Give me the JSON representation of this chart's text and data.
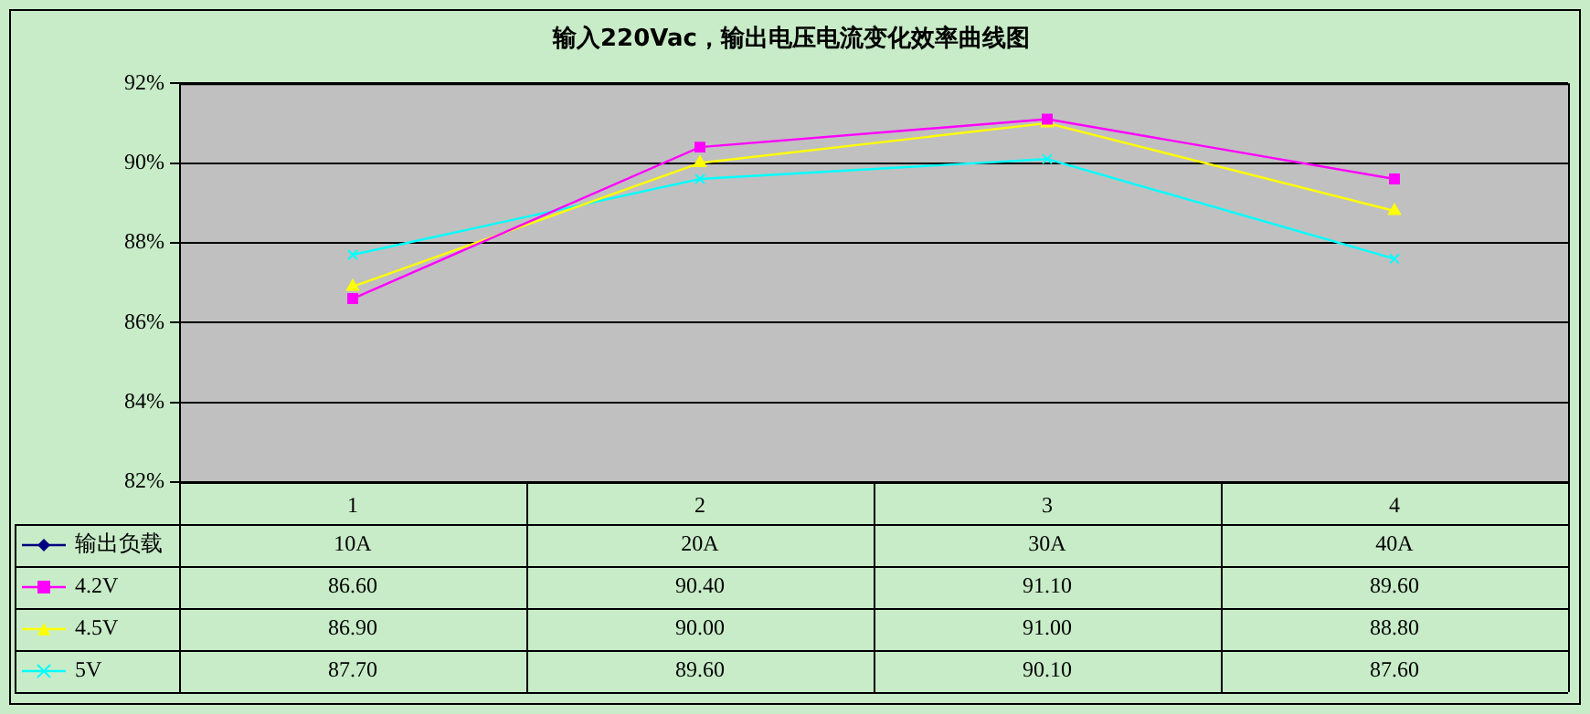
{
  "chart_data": {
    "type": "line",
    "title": "输入220Vac，输出电压电流变化效率曲线图",
    "categories": [
      "1",
      "2",
      "3",
      "4"
    ],
    "ylim": [
      82,
      92
    ],
    "yticks": [
      {
        "value": 82,
        "label": "82%"
      },
      {
        "value": 84,
        "label": "84%"
      },
      {
        "value": 86,
        "label": "86%"
      },
      {
        "value": 88,
        "label": "88%"
      },
      {
        "value": 90,
        "label": "90%"
      },
      {
        "value": 92,
        "label": "92%"
      }
    ],
    "grid": "y",
    "legend": "bottom",
    "series": [
      {
        "name": "输出负载",
        "color": "#000080",
        "marker": "diamond",
        "values": [
          null,
          null,
          null,
          null
        ],
        "value_labels": [
          "10A",
          "20A",
          "30A",
          "40A"
        ]
      },
      {
        "name": "4.2V",
        "color": "#ff00ff",
        "marker": "square",
        "values": [
          86.6,
          90.4,
          91.1,
          89.6
        ],
        "value_labels": [
          "86.60",
          "90.40",
          "91.10",
          "89.60"
        ]
      },
      {
        "name": "4.5V",
        "color": "#ffff00",
        "marker": "triangle",
        "values": [
          86.9,
          90.0,
          91.0,
          88.8
        ],
        "value_labels": [
          "86.90",
          "90.00",
          "91.00",
          "88.80"
        ]
      },
      {
        "name": "5V",
        "color": "#00ffff",
        "marker": "cross",
        "values": [
          87.7,
          89.6,
          90.1,
          87.6
        ],
        "value_labels": [
          "87.70",
          "89.60",
          "90.10",
          "87.60"
        ]
      }
    ]
  }
}
